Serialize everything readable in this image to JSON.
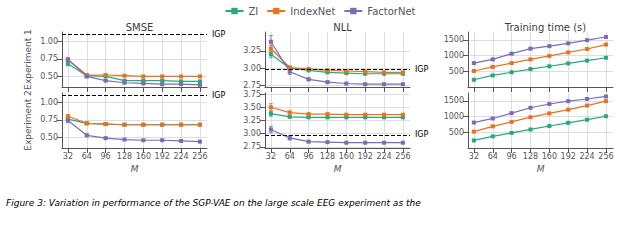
{
  "chart_data": [
    {
      "type": "line",
      "title": "SMSE",
      "ylabel": "Experiment 1",
      "x": [
        32,
        64,
        96,
        128,
        160,
        192,
        224,
        256
      ],
      "xlim": [
        22,
        268
      ],
      "xticks": [
        32,
        64,
        96,
        128,
        160,
        192,
        224,
        256
      ],
      "ylim": [
        0.35,
        1.13
      ],
      "yticks": [
        {
          "value": 0.5,
          "label": "0.50"
        },
        {
          "value": 0.75,
          "label": "0.75"
        },
        {
          "value": 1.0,
          "label": "1.00"
        }
      ],
      "grid": true,
      "tick_labels": "y",
      "legend": "top",
      "series": [
        {
          "name": "ZI",
          "color": "#29a87c",
          "marker": "square",
          "values": [
            0.68,
            0.51,
            0.5,
            0.44,
            0.44,
            0.44,
            0.43,
            0.43
          ],
          "errors": [
            0.03,
            0.01,
            0.01,
            0.01,
            0.01,
            0.01,
            0.01,
            0.01
          ]
        },
        {
          "name": "IndexNet",
          "color": "#e8721e",
          "marker": "square",
          "values": [
            0.74,
            0.52,
            0.52,
            0.51,
            0.5,
            0.5,
            0.5,
            0.5
          ],
          "errors": [
            0.02,
            0.01,
            0.01,
            0.01,
            0.01,
            0.01,
            0.01,
            0.01
          ]
        },
        {
          "name": "FactorNet",
          "color": "#7b6db5",
          "marker": "square",
          "values": [
            0.74,
            0.5,
            0.44,
            0.41,
            0.4,
            0.39,
            0.39,
            0.38
          ],
          "errors": [
            0.02,
            0.02,
            0.01,
            0.01,
            0.01,
            0.01,
            0.01,
            0.01
          ]
        }
      ],
      "annotations": [
        {
          "text": "IGP",
          "y": 1.1,
          "line_style": "dashed"
        }
      ]
    },
    {
      "type": "line",
      "title": "NLL",
      "x": [
        32,
        64,
        96,
        128,
        160,
        192,
        224,
        256
      ],
      "xlim": [
        22,
        268
      ],
      "xticks": [
        32,
        64,
        96,
        128,
        160,
        192,
        224,
        256
      ],
      "ylim": [
        2.73,
        3.52
      ],
      "yticks": [
        2.75,
        {
          "value": 3.0,
          "label": "3.00"
        },
        3.25
      ],
      "grid": true,
      "tick_labels": "y",
      "series": [
        {
          "name": "ZI",
          "color": "#29a87c",
          "marker": "square",
          "values": [
            3.2,
            3.0,
            2.97,
            2.94,
            2.93,
            2.92,
            2.92,
            2.92
          ],
          "errors": [
            0.05,
            0.02,
            0.02,
            0.01,
            0.01,
            0.01,
            0.01,
            0.01
          ]
        },
        {
          "name": "IndexNet",
          "color": "#e8721e",
          "marker": "square",
          "values": [
            3.28,
            3.01,
            2.99,
            2.97,
            2.96,
            2.95,
            2.94,
            2.94
          ],
          "errors": [
            0.05,
            0.02,
            0.02,
            0.01,
            0.01,
            0.01,
            0.01,
            0.01
          ]
        },
        {
          "name": "FactorNet",
          "color": "#7b6db5",
          "marker": "square",
          "values": [
            3.38,
            2.95,
            2.84,
            2.8,
            2.78,
            2.77,
            2.77,
            2.77
          ],
          "errors": [
            0.09,
            0.04,
            0.02,
            0.01,
            0.01,
            0.01,
            0.01,
            0.01
          ]
        }
      ],
      "annotations": [
        {
          "text": "IGP",
          "y": 2.98,
          "line_style": "dashed"
        }
      ]
    },
    {
      "type": "line",
      "title": "Training time (s)",
      "x": [
        32,
        64,
        96,
        128,
        160,
        192,
        224,
        256
      ],
      "xlim": [
        22,
        268
      ],
      "xticks": [
        32,
        64,
        96,
        128,
        160,
        192,
        224,
        256
      ],
      "ylim": [
        0,
        1750
      ],
      "yticks": [
        500,
        1000,
        1500
      ],
      "grid": true,
      "tick_labels": "y",
      "series": [
        {
          "name": "ZI",
          "color": "#29a87c",
          "marker": "square",
          "values": [
            230,
            370,
            470,
            570,
            660,
            750,
            840,
            930
          ],
          "errors": [
            10,
            10,
            10,
            10,
            10,
            10,
            10,
            10
          ]
        },
        {
          "name": "IndexNet",
          "color": "#e8721e",
          "marker": "square",
          "values": [
            510,
            640,
            760,
            880,
            990,
            1100,
            1210,
            1350
          ],
          "errors": [
            15,
            15,
            15,
            15,
            15,
            15,
            15,
            15
          ]
        },
        {
          "name": "FactorNet",
          "color": "#7b6db5",
          "marker": "square",
          "values": [
            760,
            880,
            1060,
            1220,
            1300,
            1390,
            1490,
            1590
          ],
          "errors": [
            20,
            20,
            20,
            20,
            20,
            20,
            20,
            20
          ]
        }
      ]
    },
    {
      "type": "line",
      "ylabel": "Experiment 2",
      "xlabel": "M",
      "x": [
        32,
        64,
        96,
        128,
        160,
        192,
        224,
        256
      ],
      "xlim": [
        22,
        268
      ],
      "xticks": [
        32,
        64,
        96,
        128,
        160,
        192,
        224,
        256
      ],
      "ylim": [
        0.35,
        1.13
      ],
      "yticks": [
        {
          "value": 0.5,
          "label": "0.50"
        },
        {
          "value": 0.75,
          "label": "0.75"
        },
        {
          "value": 1.0,
          "label": "1.00"
        }
      ],
      "grid": true,
      "series": [
        {
          "name": "ZI",
          "color": "#29a87c",
          "marker": "square",
          "values": [
            0.76,
            0.7,
            0.69,
            0.68,
            0.68,
            0.68,
            0.68,
            0.68
          ],
          "errors": [
            0.02,
            0.01,
            0.01,
            0.01,
            0.01,
            0.01,
            0.01,
            0.01
          ]
        },
        {
          "name": "IndexNet",
          "color": "#e8721e",
          "marker": "square",
          "values": [
            0.8,
            0.7,
            0.69,
            0.68,
            0.68,
            0.68,
            0.68,
            0.68
          ],
          "errors": [
            0.02,
            0.01,
            0.01,
            0.01,
            0.01,
            0.01,
            0.01,
            0.01
          ]
        },
        {
          "name": "FactorNet",
          "color": "#7b6db5",
          "marker": "square",
          "values": [
            0.74,
            0.53,
            0.49,
            0.47,
            0.46,
            0.46,
            0.45,
            0.44
          ],
          "errors": [
            0.03,
            0.02,
            0.01,
            0.01,
            0.01,
            0.01,
            0.01,
            0.01
          ]
        }
      ],
      "annotations": [
        {
          "text": "IGP",
          "y": 1.1,
          "line_style": "dashed"
        }
      ]
    },
    {
      "type": "line",
      "xlabel": "M",
      "x": [
        32,
        64,
        96,
        128,
        160,
        192,
        224,
        256
      ],
      "xlim": [
        22,
        268
      ],
      "xticks": [
        32,
        64,
        96,
        128,
        160,
        192,
        224,
        256
      ],
      "ylim": [
        2.73,
        3.77
      ],
      "yticks": [
        2.75,
        {
          "value": 3.0,
          "label": "3.00"
        },
        3.25,
        {
          "value": 3.5,
          "label": "3.50"
        },
        3.75
      ],
      "grid": true,
      "series": [
        {
          "name": "ZI",
          "color": "#29a87c",
          "marker": "square",
          "values": [
            3.38,
            3.32,
            3.31,
            3.31,
            3.31,
            3.31,
            3.31,
            3.31
          ],
          "errors": [
            0.05,
            0.02,
            0.02,
            0.01,
            0.01,
            0.01,
            0.01,
            0.01
          ]
        },
        {
          "name": "IndexNet",
          "color": "#e8721e",
          "marker": "square",
          "values": [
            3.5,
            3.4,
            3.37,
            3.37,
            3.36,
            3.36,
            3.36,
            3.36
          ],
          "errors": [
            0.07,
            0.03,
            0.02,
            0.01,
            0.01,
            0.01,
            0.01,
            0.01
          ]
        },
        {
          "name": "FactorNet",
          "color": "#7b6db5",
          "marker": "square",
          "values": [
            3.08,
            2.92,
            2.85,
            2.84,
            2.83,
            2.83,
            2.83,
            2.83
          ],
          "errors": [
            0.06,
            0.04,
            0.02,
            0.01,
            0.01,
            0.01,
            0.01,
            0.01
          ]
        }
      ],
      "annotations": [
        {
          "text": "IGP",
          "y": 2.98,
          "line_style": "dashed"
        }
      ]
    },
    {
      "type": "line",
      "xlabel": "M",
      "x": [
        32,
        64,
        96,
        128,
        160,
        192,
        224,
        256
      ],
      "xlim": [
        22,
        268
      ],
      "xticks": [
        32,
        64,
        96,
        128,
        160,
        192,
        224,
        256
      ],
      "ylim": [
        0,
        1750
      ],
      "yticks": [
        500,
        1000,
        1500
      ],
      "grid": true,
      "series": [
        {
          "name": "ZI",
          "color": "#29a87c",
          "marker": "square",
          "values": [
            240,
            370,
            480,
            590,
            700,
            800,
            900,
            1010
          ],
          "errors": [
            10,
            10,
            10,
            10,
            10,
            10,
            10,
            10
          ]
        },
        {
          "name": "IndexNet",
          "color": "#e8721e",
          "marker": "square",
          "values": [
            520,
            690,
            830,
            980,
            1100,
            1220,
            1350,
            1490
          ],
          "errors": [
            15,
            15,
            15,
            15,
            15,
            15,
            15,
            15
          ]
        },
        {
          "name": "FactorNet",
          "color": "#7b6db5",
          "marker": "square",
          "values": [
            810,
            940,
            1110,
            1280,
            1400,
            1490,
            1560,
            1640
          ],
          "errors": [
            20,
            20,
            20,
            20,
            20,
            20,
            20,
            20
          ]
        }
      ]
    }
  ],
  "caption": "Figure 3: Variation in performance of the SGP-VAE on the large scale EEG experiment as the"
}
